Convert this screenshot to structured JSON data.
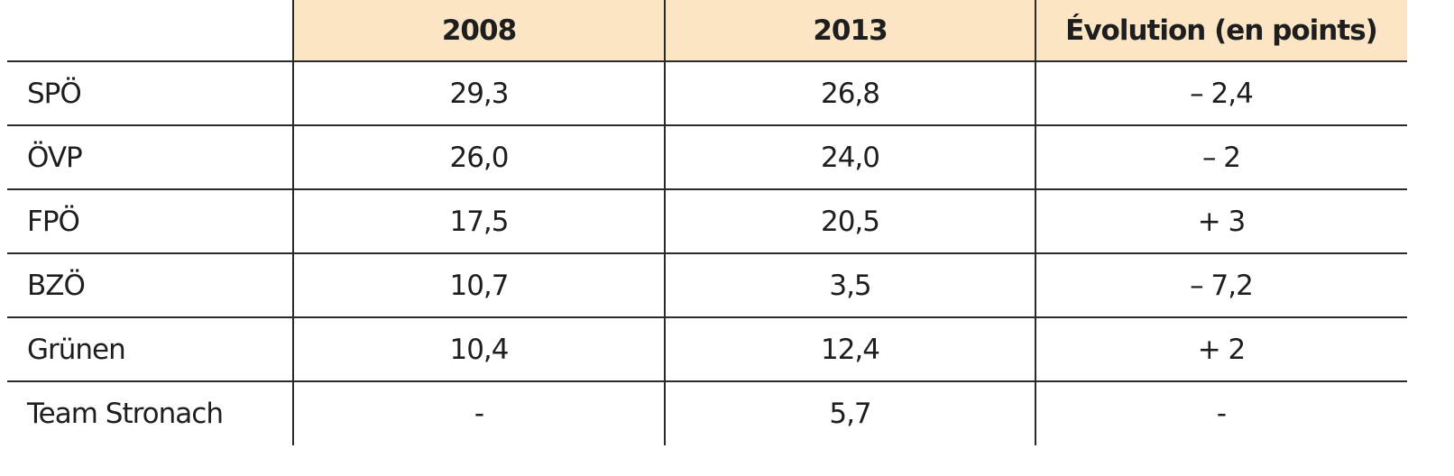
{
  "table": {
    "columns": [
      "2008",
      "2013",
      "Évolution (en points)"
    ],
    "rows": [
      {
        "label": "SPÖ",
        "cells": [
          "29,3",
          "26,8",
          "– 2,4"
        ]
      },
      {
        "label": "ÖVP",
        "cells": [
          "26,0",
          "24,0",
          "– 2"
        ]
      },
      {
        "label": "FPÖ",
        "cells": [
          "17,5",
          "20,5",
          "+ 3"
        ]
      },
      {
        "label": "BZÖ",
        "cells": [
          "10,7",
          "3,5",
          "– 7,2"
        ]
      },
      {
        "label": "Grünen",
        "cells": [
          "10,4",
          "12,4",
          "+ 2"
        ]
      },
      {
        "label": "Team Stronach",
        "cells": [
          "-",
          "5,7",
          "-"
        ]
      }
    ]
  }
}
